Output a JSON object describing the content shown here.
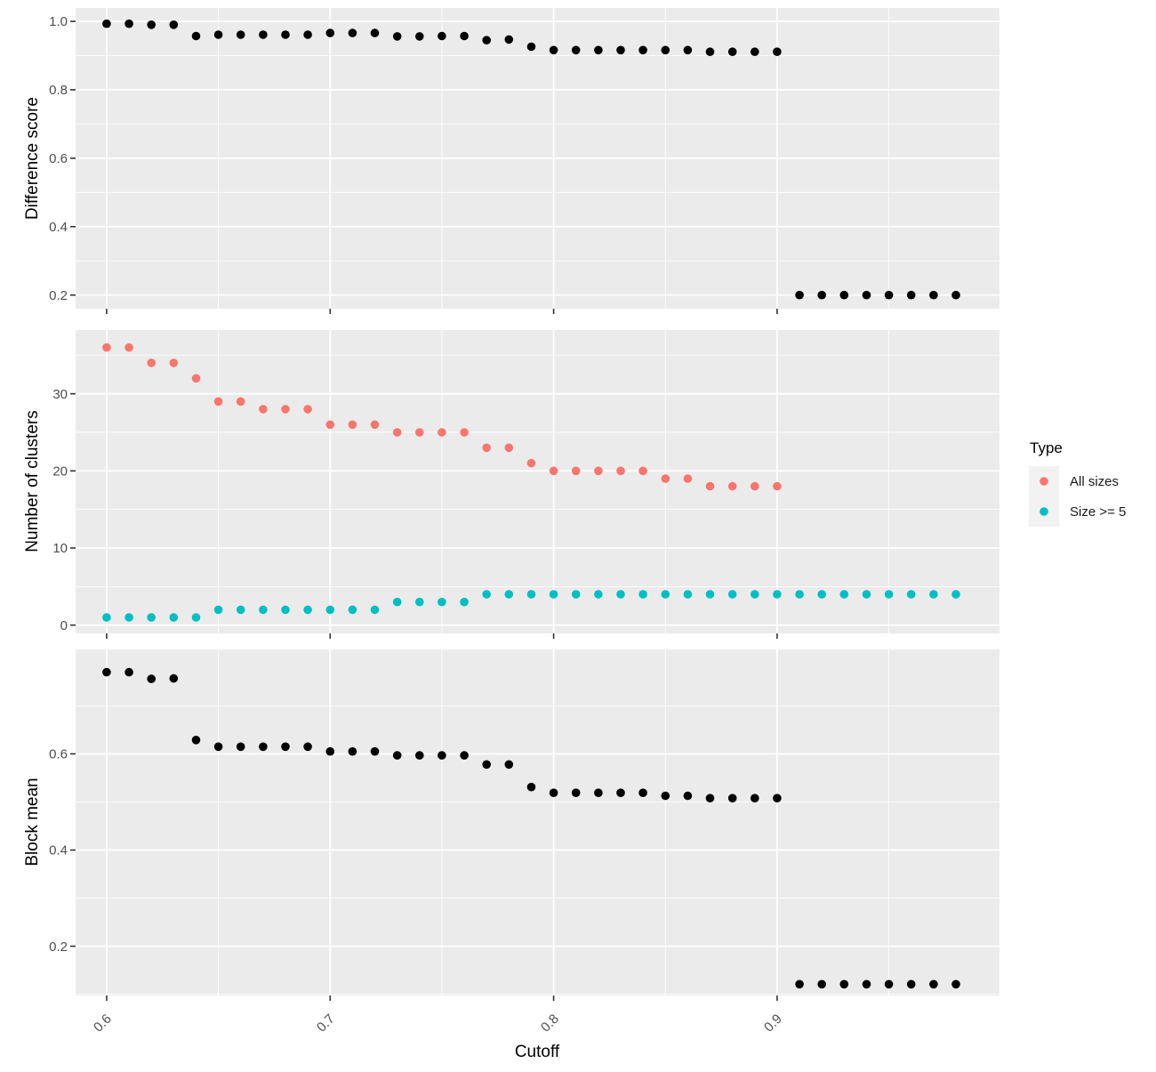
{
  "x_axis": {
    "title": "Cutoff",
    "tick_labels": [
      "0.6",
      "0.7",
      "0.8",
      "0.9"
    ],
    "tick_values": [
      0.6,
      0.7,
      0.8,
      0.9
    ],
    "minor_values": [
      0.65,
      0.75,
      0.85,
      0.95
    ]
  },
  "legend": {
    "title": "Type",
    "items": [
      {
        "label": "All sizes",
        "color": "#F8766D"
      },
      {
        "label": "Size >= 5",
        "color": "#00BFC4"
      }
    ]
  },
  "style": {
    "panel_bg": "#EBEBEB",
    "grid_color": "#FFFFFF",
    "axis_text_color": "#4D4D4D",
    "tick_mark_color": "#333333",
    "black_point_color": "#000000",
    "legend_key_bg": "#F2F2F2"
  },
  "chart_data": [
    {
      "type": "scatter",
      "title": "",
      "ylabel": "Difference score",
      "xlabel": "Cutoff",
      "xlim": [
        0.5861,
        0.9995
      ],
      "ylim": [
        0.1602,
        1.039
      ],
      "grid": "on",
      "x": [
        0.6,
        0.61,
        0.62,
        0.63,
        0.64,
        0.65,
        0.66,
        0.67,
        0.68,
        0.69,
        0.7,
        0.71,
        0.72,
        0.73,
        0.74,
        0.75,
        0.76,
        0.77,
        0.78,
        0.79,
        0.8,
        0.81,
        0.82,
        0.83,
        0.84,
        0.85,
        0.86,
        0.87,
        0.88,
        0.89,
        0.9,
        0.91,
        0.92,
        0.93,
        0.94,
        0.95,
        0.96,
        0.97,
        0.98
      ],
      "series": [
        {
          "name": "Difference score",
          "color": "#000000",
          "values": [
            0.993,
            0.993,
            0.99,
            0.99,
            0.957,
            0.961,
            0.961,
            0.961,
            0.961,
            0.961,
            0.966,
            0.966,
            0.966,
            0.956,
            0.956,
            0.957,
            0.957,
            0.945,
            0.947,
            0.926,
            0.916,
            0.916,
            0.916,
            0.916,
            0.916,
            0.916,
            0.916,
            0.911,
            0.911,
            0.911,
            0.911,
            0.2,
            0.2,
            0.2,
            0.2,
            0.2,
            0.2,
            0.2,
            0.2
          ]
        }
      ],
      "y_ticks": {
        "labels": [
          "1.0",
          "0.8",
          "0.6",
          "0.4",
          "0.2"
        ],
        "values": [
          1.0,
          0.8,
          0.6,
          0.4,
          0.2
        ]
      },
      "y_minor": [
        0.9,
        0.7,
        0.5,
        0.3
      ]
    },
    {
      "type": "scatter",
      "title": "",
      "ylabel": "Number of clusters",
      "xlabel": "Cutoff",
      "xlim": [
        0.5861,
        0.9995
      ],
      "ylim": [
        -1.073,
        38.26
      ],
      "grid": "on",
      "x": [
        0.6,
        0.61,
        0.62,
        0.63,
        0.64,
        0.65,
        0.66,
        0.67,
        0.68,
        0.69,
        0.7,
        0.71,
        0.72,
        0.73,
        0.74,
        0.75,
        0.76,
        0.77,
        0.78,
        0.79,
        0.8,
        0.81,
        0.82,
        0.83,
        0.84,
        0.85,
        0.86,
        0.87,
        0.88,
        0.89,
        0.9,
        0.91,
        0.92,
        0.93,
        0.94,
        0.95,
        0.96,
        0.97,
        0.98
      ],
      "series": [
        {
          "name": "All sizes",
          "color": "#F8766D",
          "values": [
            36,
            36,
            34,
            34,
            32,
            29,
            29,
            28,
            28,
            28,
            26,
            26,
            26,
            25,
            25,
            25,
            25,
            23,
            23,
            21,
            20,
            20,
            20,
            20,
            20,
            19,
            19,
            18,
            18,
            18,
            18,
            null,
            null,
            null,
            null,
            null,
            null,
            null,
            null
          ]
        },
        {
          "name": "Size >= 5",
          "color": "#00BFC4",
          "values": [
            1,
            1,
            1,
            1,
            1,
            2,
            2,
            2,
            2,
            2,
            2,
            2,
            2,
            3,
            3,
            3,
            3,
            4,
            4,
            4,
            4,
            4,
            4,
            4,
            4,
            4,
            4,
            4,
            4,
            4,
            4,
            4,
            4,
            4,
            4,
            4,
            4,
            4,
            4
          ]
        }
      ],
      "y_ticks": {
        "labels": [
          "30",
          "20",
          "10",
          "0"
        ],
        "values": [
          30,
          20,
          10,
          0
        ]
      },
      "y_minor": [
        35,
        25,
        15,
        5
      ]
    },
    {
      "type": "scatter",
      "title": "",
      "ylabel": "Block mean",
      "xlabel": "Cutoff",
      "xlim": [
        0.5861,
        0.9995
      ],
      "ylim": [
        0.0975,
        0.8173
      ],
      "grid": "on",
      "x": [
        0.6,
        0.61,
        0.62,
        0.63,
        0.64,
        0.65,
        0.66,
        0.67,
        0.68,
        0.69,
        0.7,
        0.71,
        0.72,
        0.73,
        0.74,
        0.75,
        0.76,
        0.77,
        0.78,
        0.79,
        0.8,
        0.81,
        0.82,
        0.83,
        0.84,
        0.85,
        0.86,
        0.87,
        0.88,
        0.89,
        0.9,
        0.91,
        0.92,
        0.93,
        0.94,
        0.95,
        0.96,
        0.97,
        0.98
      ],
      "series": [
        {
          "name": "Block mean",
          "color": "#000000",
          "values": [
            0.77,
            0.77,
            0.756,
            0.757,
            0.629,
            0.615,
            0.615,
            0.615,
            0.615,
            0.615,
            0.605,
            0.605,
            0.605,
            0.597,
            0.597,
            0.597,
            0.597,
            0.578,
            0.578,
            0.531,
            0.519,
            0.519,
            0.519,
            0.519,
            0.519,
            0.513,
            0.513,
            0.508,
            0.508,
            0.508,
            0.508,
            0.121,
            0.121,
            0.121,
            0.121,
            0.121,
            0.121,
            0.121,
            0.121
          ]
        }
      ],
      "y_ticks": {
        "labels": [
          "0.6",
          "0.4",
          "0.2"
        ],
        "values": [
          0.6,
          0.4,
          0.2
        ]
      },
      "y_minor": [
        0.7,
        0.5,
        0.3,
        0.1
      ]
    }
  ]
}
